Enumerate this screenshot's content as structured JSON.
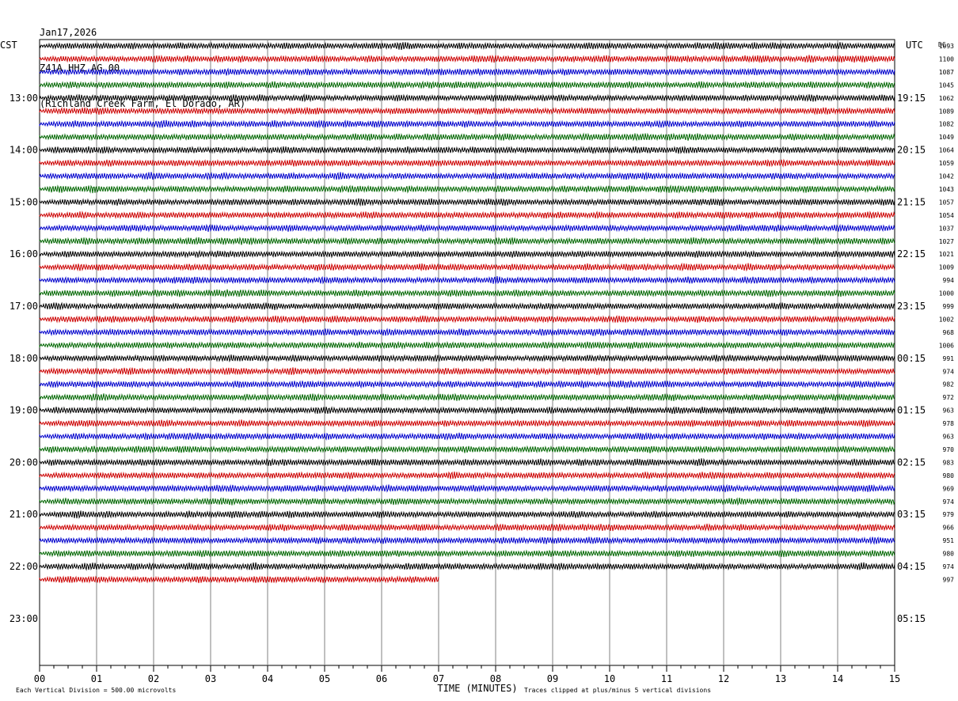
{
  "header": {
    "date": "Jan17,2026",
    "station": "Z41A HHZ AG 00",
    "location": "(Richland Creek Farm, El Dorado, AR)"
  },
  "labels": {
    "left_tz": "CST",
    "right_tz": "UTC",
    "right_col": "DC",
    "x_title": "TIME (MINUTES)",
    "scale_note": "Each Vertical Division =  500.00 microvolts",
    "clip_note": "Traces clipped at plus/minus 5 vertical divisions"
  },
  "chart_data": {
    "type": "line",
    "title": "Jan17,2026 Z41A HHZ AG 00 (Richland Creek Farm, El Dorado, AR)",
    "xlabel": "TIME (MINUTES)",
    "ylabel": "",
    "x_ticks": [
      "00",
      "01",
      "02",
      "03",
      "04",
      "05",
      "06",
      "07",
      "08",
      "09",
      "10",
      "11",
      "12",
      "13",
      "14",
      "15"
    ],
    "xlim": [
      0,
      15
    ],
    "left_hour_labels": [
      "13:00",
      "14:00",
      "15:00",
      "16:00",
      "17:00",
      "18:00",
      "19:00",
      "20:00",
      "21:00",
      "22:00",
      "23:00"
    ],
    "right_hour_labels": [
      "19:15",
      "20:15",
      "21:15",
      "22:15",
      "23:15",
      "00:15",
      "01:15",
      "02:15",
      "03:15",
      "04:15",
      "05:15"
    ],
    "trace_colors": [
      "#000000",
      "#cc0000",
      "#0000cc",
      "#006600"
    ],
    "dc_offsets": [
      1093,
      1100,
      1087,
      1045,
      1062,
      1089,
      1082,
      1049,
      1064,
      1059,
      1042,
      1043,
      1057,
      1054,
      1037,
      1027,
      1021,
      1009,
      994,
      1000,
      999,
      1002,
      968,
      1006,
      991,
      974,
      982,
      972,
      963,
      978,
      963,
      970,
      983,
      980,
      969,
      974,
      979,
      966,
      951,
      980,
      974,
      997
    ],
    "trace_count": 42,
    "last_trace_end_minute": 7.0,
    "grid": true
  }
}
